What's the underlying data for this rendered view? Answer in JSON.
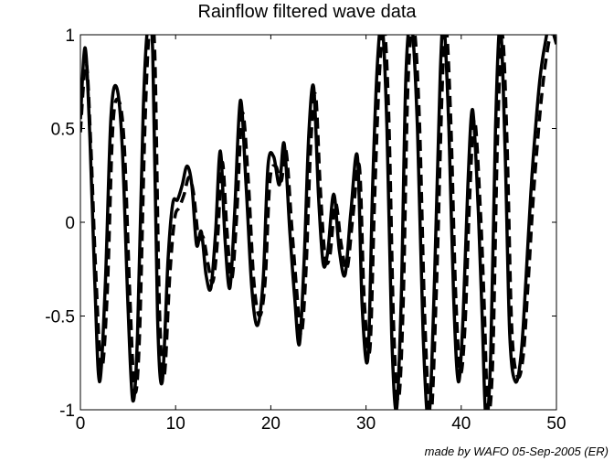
{
  "chart_data": {
    "type": "line",
    "title": "Rainflow filtered wave data",
    "xlabel": "",
    "ylabel": "",
    "xlim": [
      0,
      50
    ],
    "ylim": [
      -1,
      1
    ],
    "xticks": [
      0,
      10,
      20,
      30,
      40,
      50
    ],
    "xtick_labels": [
      "0",
      "10",
      "20",
      "30",
      "40",
      "50"
    ],
    "yticks": [
      -1,
      -0.5,
      0,
      0.5,
      1
    ],
    "ytick_labels": [
      "-1",
      "-0.5",
      "0",
      "0.5",
      "1"
    ],
    "grid": false,
    "series": [
      {
        "style": "solid",
        "color": "#000000",
        "x": [
          0,
          0.5,
          1,
          1.5,
          2,
          2.6,
          3.2,
          3.8,
          4.4,
          5,
          5.5,
          6,
          6.6,
          7.1,
          7.6,
          8.1,
          8.6,
          9.2,
          9.7,
          10.2,
          10.7,
          11.2,
          11.7,
          12.2,
          12.7,
          13.2,
          13.7,
          14.2,
          14.7,
          15.2,
          15.7,
          16.2,
          16.8,
          17.4,
          18,
          18.6,
          19.2,
          19.7,
          20.3,
          20.9,
          21.4,
          22,
          22.5,
          23,
          23.5,
          24,
          24.5,
          25,
          25.5,
          26,
          26.6,
          27.2,
          27.8,
          28.4,
          29.1,
          29.6,
          30.2,
          30.7,
          31.2,
          31.7,
          32.2,
          32.7,
          33.2,
          33.7,
          34.2,
          34.8,
          35.4,
          36,
          36.6,
          37.2,
          37.8,
          38.2,
          38.7,
          39.2,
          39.7,
          40.2,
          40.7,
          41.2,
          41.8,
          42.2,
          42.6,
          43.1,
          43.6,
          44.1,
          44.6,
          45.1,
          45.7,
          46.3,
          46.8,
          47.3,
          47.8,
          48.3,
          48.8,
          49.3,
          50
        ],
        "y": [
          0.55,
          0.93,
          0.45,
          -0.3,
          -0.85,
          -0.35,
          0.55,
          0.72,
          0.4,
          -0.45,
          -0.95,
          -0.6,
          0.6,
          1.05,
          0.9,
          -0.5,
          -0.85,
          -0.2,
          0.1,
          0.12,
          0.2,
          0.3,
          0.2,
          -0.12,
          -0.05,
          -0.28,
          -0.35,
          -0.05,
          0.38,
          -0.1,
          -0.35,
          0.05,
          0.65,
          0.2,
          -0.35,
          -0.55,
          -0.3,
          0.3,
          0.35,
          0.2,
          0.42,
          -0.05,
          -0.4,
          -0.65,
          -0.2,
          0.48,
          0.72,
          0.15,
          -0.22,
          -0.15,
          0.15,
          -0.15,
          -0.28,
          0.05,
          0.35,
          -0.45,
          -0.72,
          0.2,
          0.85,
          1.05,
          0.5,
          -0.6,
          -1.0,
          -0.4,
          0.8,
          1.05,
          0.5,
          -0.6,
          -1.05,
          -0.3,
          0.8,
          1.05,
          0.5,
          -0.4,
          -0.85,
          -0.5,
          0.2,
          0.6,
          0.05,
          -0.5,
          -1.05,
          -0.7,
          0.5,
          1.05,
          0.4,
          -0.6,
          -0.85,
          -0.7,
          -0.3,
          0.15,
          0.5,
          0.78,
          0.95,
          1.05,
          0.95
        ]
      },
      {
        "style": "dashed",
        "color": "#000000",
        "x": [
          0,
          0.6,
          1.1,
          1.6,
          2.2,
          2.8,
          3.4,
          4,
          4.6,
          5.2,
          5.7,
          6.2,
          6.8,
          7.3,
          7.8,
          8.3,
          8.8,
          9.4,
          9.9,
          10.4,
          10.9,
          11.4,
          11.9,
          12.4,
          12.9,
          13.4,
          13.9,
          14.4,
          14.9,
          15.4,
          15.9,
          16.4,
          17,
          17.6,
          18.2,
          18.8,
          19.4,
          19.9,
          20.5,
          21.1,
          21.6,
          22.2,
          22.7,
          23.2,
          23.7,
          24.2,
          24.7,
          25.2,
          25.7,
          26.2,
          26.8,
          27.4,
          28,
          28.6,
          29.3,
          29.8,
          30.4,
          30.9,
          31.4,
          31.9,
          32.4,
          32.9,
          33.4,
          33.9,
          34.4,
          35,
          35.6,
          36.2,
          36.8,
          37.4,
          38,
          38.4,
          38.9,
          39.4,
          39.9,
          40.4,
          40.9,
          41.4,
          42,
          42.4,
          42.8,
          43.3,
          43.8,
          44.3,
          44.8,
          45.3,
          45.9,
          46.5,
          47,
          47.5,
          48,
          48.5,
          49,
          49.5,
          50
        ],
        "y": [
          0.48,
          0.85,
          0.4,
          -0.25,
          -0.78,
          -0.4,
          0.5,
          0.65,
          0.42,
          -0.4,
          -0.9,
          -0.62,
          0.55,
          1.05,
          0.92,
          -0.45,
          -0.82,
          -0.28,
          0.02,
          0.08,
          0.15,
          0.24,
          0.15,
          -0.08,
          -0.08,
          -0.22,
          -0.32,
          -0.1,
          0.32,
          -0.05,
          -0.3,
          0.02,
          0.58,
          0.25,
          -0.3,
          -0.5,
          -0.32,
          0.22,
          0.3,
          0.22,
          0.38,
          -0.02,
          -0.35,
          -0.6,
          -0.25,
          0.42,
          0.68,
          0.18,
          -0.18,
          -0.18,
          0.1,
          -0.12,
          -0.25,
          0.02,
          0.3,
          -0.4,
          -0.68,
          0.12,
          0.78,
          1.05,
          0.55,
          -0.55,
          -0.95,
          -0.45,
          0.72,
          1.05,
          0.55,
          -0.55,
          -1.05,
          -0.35,
          0.72,
          1.05,
          0.55,
          -0.35,
          -0.8,
          -0.55,
          0.15,
          0.55,
          0.08,
          -0.42,
          -1.0,
          -0.75,
          0.42,
          1.0,
          0.45,
          -0.55,
          -0.82,
          -0.72,
          -0.35,
          0.08,
          0.42,
          0.7,
          0.9,
          1.02,
          0.98
        ]
      }
    ]
  },
  "credit": "made by WAFO 05-Sep-2005 (ER)"
}
